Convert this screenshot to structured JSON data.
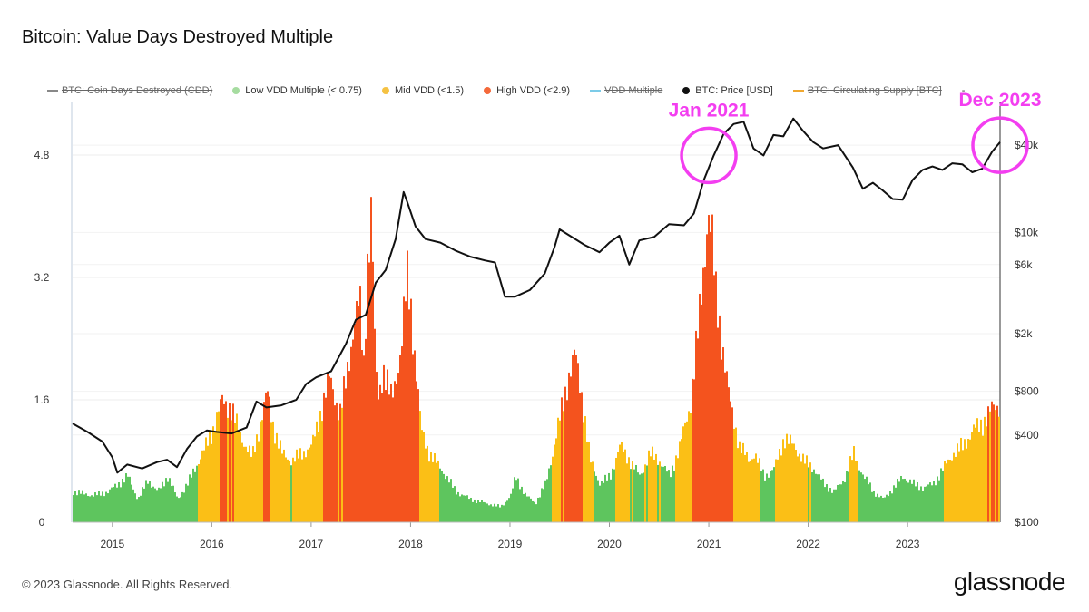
{
  "title": "Bitcoin: Value Days Destroyed Multiple",
  "legend": [
    {
      "label": "BTC: Coin Days Destroyed (CDD)",
      "color": "#888888",
      "kind": "line",
      "disabled": true
    },
    {
      "label": "Low VDD Multiple (< 0.75)",
      "color": "#a6dca0",
      "kind": "dot",
      "disabled": false
    },
    {
      "label": "Mid VDD (<1.5)",
      "color": "#f5c243",
      "kind": "dot",
      "disabled": false
    },
    {
      "label": "High VDD (<2.9)",
      "color": "#f4693a",
      "kind": "dot",
      "disabled": false
    },
    {
      "label": "VDD Multiple",
      "color": "#7ccbe8",
      "kind": "line",
      "disabled": true
    },
    {
      "label": "BTC: Price [USD]",
      "color": "#111111",
      "kind": "dot",
      "disabled": false
    },
    {
      "label": "BTC: Circulating Supply [BTC]",
      "color": "#f0a830",
      "kind": "line",
      "disabled": true
    }
  ],
  "legend_extra": "-",
  "footer": "© 2023 Glassnode. All Rights Reserved.",
  "logo": "glassnode",
  "annotations": [
    {
      "label": "Jan 2021",
      "date": 2021.0,
      "price": 34000,
      "color": "#f33ef0"
    },
    {
      "label": "Dec 2023",
      "date": 2023.93,
      "price": 40000,
      "color": "#f33ef0"
    }
  ],
  "chart_data": {
    "type": "area",
    "x_range": [
      2014.6,
      2023.93
    ],
    "x_ticks": [
      "2015",
      "2016",
      "2017",
      "2018",
      "2019",
      "2020",
      "2021",
      "2022",
      "2023"
    ],
    "y_left": {
      "ticks": [
        "0",
        "1.6",
        "3.2",
        "4.8"
      ],
      "range": [
        0,
        5.5
      ],
      "label": ""
    },
    "y_right": {
      "ticks": [
        "$100",
        "$400",
        "$800",
        "$2k",
        "$6k",
        "$10k",
        "$40k"
      ],
      "range": [
        100,
        80000
      ],
      "log": true,
      "label": ""
    },
    "colors": {
      "low": "#5ec55e",
      "mid": "#fbbf16",
      "high": "#f4531e",
      "price": "#111111"
    },
    "vdd_thresholds": {
      "low": 0.75,
      "high": 1.5
    },
    "series": [
      {
        "name": "VDD Multiple",
        "x": [
          2014.6,
          2014.8,
          2014.95,
          2015.05,
          2015.15,
          2015.25,
          2015.35,
          2015.45,
          2015.55,
          2015.65,
          2015.75,
          2015.82,
          2015.9,
          2016.0,
          2016.1,
          2016.18,
          2016.25,
          2016.33,
          2016.4,
          2016.48,
          2016.55,
          2016.62,
          2016.7,
          2016.8,
          2016.9,
          2017.0,
          2017.08,
          2017.18,
          2017.28,
          2017.35,
          2017.42,
          2017.48,
          2017.52,
          2017.56,
          2017.6,
          2017.63,
          2017.66,
          2017.72,
          2017.8,
          2017.86,
          2017.9,
          2017.93,
          2017.96,
          2017.99,
          2018.02,
          2018.06,
          2018.1,
          2018.18,
          2018.3,
          2018.45,
          2018.6,
          2018.75,
          2018.9,
          2019.0,
          2019.05,
          2019.15,
          2019.25,
          2019.35,
          2019.42,
          2019.5,
          2019.58,
          2019.65,
          2019.72,
          2019.8,
          2019.9,
          2020.0,
          2020.1,
          2020.2,
          2020.3,
          2020.4,
          2020.5,
          2020.6,
          2020.7,
          2020.8,
          2020.85,
          2020.9,
          2020.95,
          2020.98,
          2021.02,
          2021.06,
          2021.1,
          2021.14,
          2021.2,
          2021.3,
          2021.4,
          2021.45,
          2021.55,
          2021.65,
          2021.75,
          2021.85,
          2021.95,
          2022.05,
          2022.15,
          2022.25,
          2022.35,
          2022.45,
          2022.55,
          2022.65,
          2022.75,
          2022.85,
          2022.95,
          2023.05,
          2023.15,
          2023.25,
          2023.35,
          2023.45,
          2023.55,
          2023.65,
          2023.75,
          2023.85,
          2023.93
        ],
        "values": [
          0.4,
          0.35,
          0.4,
          0.5,
          0.6,
          0.3,
          0.55,
          0.4,
          0.6,
          0.3,
          0.5,
          0.7,
          0.9,
          1.2,
          1.6,
          1.5,
          1.25,
          1.0,
          0.85,
          1.3,
          1.7,
          1.2,
          0.9,
          0.8,
          0.9,
          1.0,
          1.4,
          1.9,
          1.4,
          1.9,
          2.6,
          2.9,
          2.0,
          3.5,
          4.1,
          2.4,
          1.6,
          2.0,
          1.6,
          2.0,
          2.3,
          2.8,
          3.2,
          2.9,
          2.4,
          1.8,
          1.2,
          0.9,
          0.7,
          0.4,
          0.3,
          0.25,
          0.2,
          0.35,
          0.6,
          0.35,
          0.25,
          0.5,
          0.9,
          1.4,
          1.9,
          2.2,
          1.6,
          0.8,
          0.5,
          0.6,
          1.0,
          0.8,
          0.6,
          0.9,
          0.8,
          0.6,
          1.0,
          1.5,
          2.1,
          2.7,
          3.5,
          4.1,
          3.8,
          3.0,
          2.6,
          2.2,
          1.6,
          1.0,
          0.8,
          0.9,
          0.6,
          0.7,
          1.1,
          1.0,
          0.8,
          0.7,
          0.5,
          0.4,
          0.55,
          0.9,
          0.6,
          0.4,
          0.3,
          0.45,
          0.6,
          0.5,
          0.45,
          0.5,
          0.7,
          0.9,
          1.0,
          1.2,
          1.3,
          1.5,
          1.55
        ]
      },
      {
        "name": "BTC: Price [USD]",
        "x": [
          2014.6,
          2014.75,
          2014.9,
          2015.0,
          2015.05,
          2015.15,
          2015.3,
          2015.45,
          2015.55,
          2015.65,
          2015.75,
          2015.85,
          2015.95,
          2016.05,
          2016.2,
          2016.35,
          2016.45,
          2016.55,
          2016.7,
          2016.85,
          2016.95,
          2017.05,
          2017.2,
          2017.35,
          2017.45,
          2017.55,
          2017.65,
          2017.75,
          2017.85,
          2017.93,
          2017.97,
          2018.05,
          2018.15,
          2018.3,
          2018.45,
          2018.6,
          2018.75,
          2018.85,
          2018.95,
          2019.05,
          2019.2,
          2019.35,
          2019.45,
          2019.5,
          2019.6,
          2019.75,
          2019.9,
          2020.0,
          2020.1,
          2020.2,
          2020.3,
          2020.45,
          2020.6,
          2020.75,
          2020.85,
          2020.95,
          2021.05,
          2021.15,
          2021.25,
          2021.35,
          2021.45,
          2021.55,
          2021.65,
          2021.75,
          2021.85,
          2021.95,
          2022.05,
          2022.15,
          2022.3,
          2022.45,
          2022.55,
          2022.65,
          2022.75,
          2022.85,
          2022.95,
          2023.05,
          2023.15,
          2023.25,
          2023.35,
          2023.45,
          2023.55,
          2023.65,
          2023.75,
          2023.85,
          2023.93
        ],
        "values": [
          480,
          420,
          360,
          280,
          220,
          250,
          235,
          260,
          270,
          240,
          320,
          390,
          430,
          420,
          410,
          450,
          680,
          620,
          640,
          700,
          900,
          1000,
          1100,
          1700,
          2500,
          2700,
          4500,
          5500,
          9000,
          19000,
          16000,
          11000,
          9000,
          8500,
          7500,
          6800,
          6400,
          6200,
          3600,
          3600,
          4000,
          5200,
          8000,
          10500,
          9500,
          8200,
          7300,
          8500,
          9500,
          6000,
          8800,
          9300,
          11400,
          11200,
          13500,
          23000,
          34000,
          48000,
          56000,
          58000,
          38000,
          34000,
          47000,
          46000,
          61000,
          50000,
          42000,
          38000,
          40000,
          28000,
          20000,
          22000,
          19500,
          17000,
          16800,
          23000,
          27000,
          28500,
          27000,
          30000,
          29500,
          26000,
          27500,
          36000,
          42000
        ]
      }
    ]
  }
}
